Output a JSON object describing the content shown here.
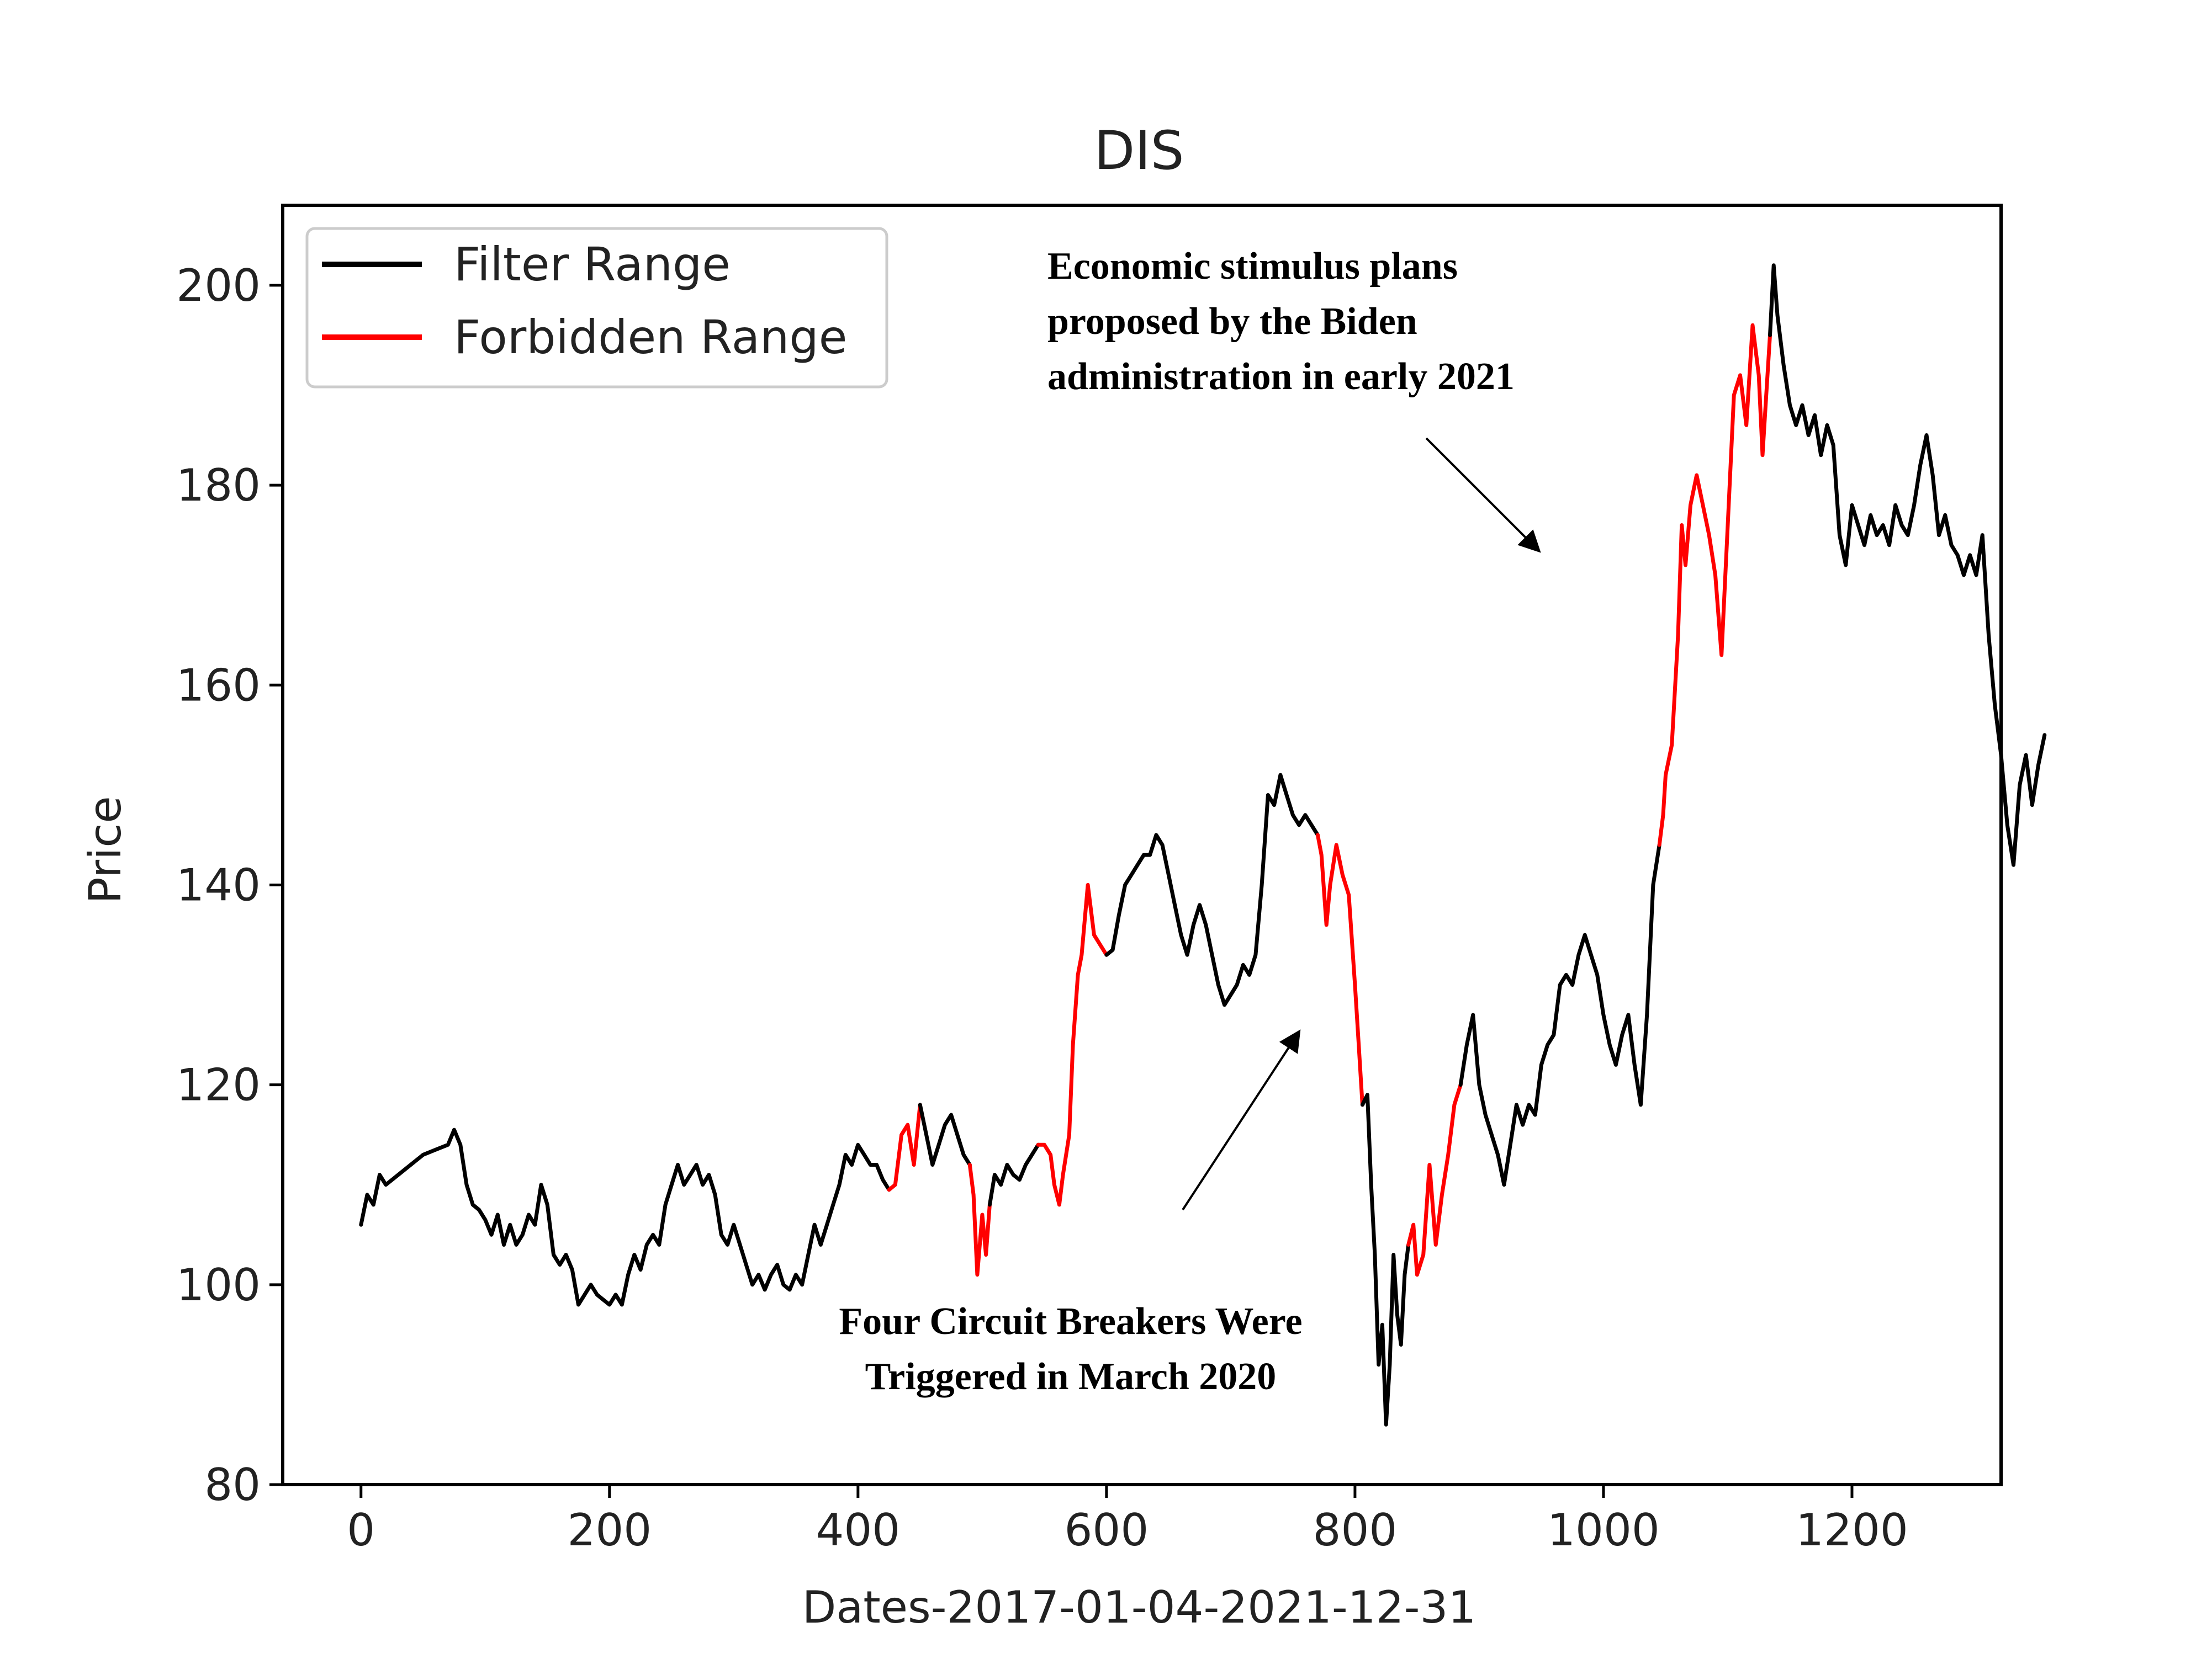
{
  "chart_data": {
    "type": "line",
    "title": "DIS",
    "xlabel": "Dates-2017-01-04-2021-12-31",
    "ylabel": "Price",
    "xlim": [
      -63,
      1320
    ],
    "ylim": [
      80,
      208
    ],
    "x_ticks": [
      0,
      200,
      400,
      600,
      800,
      1000,
      1200
    ],
    "y_ticks": [
      80,
      100,
      120,
      140,
      160,
      180,
      200
    ],
    "grid": false,
    "legend_position": "top-left",
    "series": [
      {
        "name": "Filter Range",
        "color": "#000000",
        "points": [
          [
            0,
            106
          ],
          [
            5,
            109
          ],
          [
            10,
            108
          ],
          [
            15,
            111
          ],
          [
            20,
            110
          ],
          [
            30,
            111
          ],
          [
            40,
            112
          ],
          [
            50,
            113
          ],
          [
            60,
            113.5
          ],
          [
            70,
            114
          ],
          [
            75,
            115.5
          ],
          [
            80,
            114
          ],
          [
            85,
            110
          ],
          [
            90,
            108
          ],
          [
            95,
            107.5
          ],
          [
            100,
            106.5
          ],
          [
            105,
            105
          ],
          [
            110,
            107
          ],
          [
            115,
            104
          ],
          [
            120,
            106
          ],
          [
            125,
            104
          ],
          [
            130,
            105
          ],
          [
            135,
            107
          ],
          [
            140,
            106
          ],
          [
            145,
            110
          ],
          [
            150,
            108
          ],
          [
            155,
            103
          ],
          [
            160,
            102
          ],
          [
            165,
            103
          ],
          [
            170,
            101.5
          ],
          [
            175,
            98
          ],
          [
            180,
            99
          ],
          [
            185,
            100
          ],
          [
            190,
            99
          ],
          [
            195,
            98.5
          ],
          [
            200,
            98
          ],
          [
            205,
            99
          ],
          [
            210,
            98
          ],
          [
            215,
            101
          ],
          [
            220,
            103
          ],
          [
            225,
            101.5
          ],
          [
            230,
            104
          ],
          [
            235,
            105
          ],
          [
            240,
            104
          ],
          [
            245,
            108
          ],
          [
            250,
            110
          ],
          [
            255,
            112
          ],
          [
            260,
            110
          ],
          [
            265,
            111
          ],
          [
            270,
            112
          ],
          [
            275,
            110
          ],
          [
            280,
            111
          ],
          [
            285,
            109
          ],
          [
            290,
            105
          ],
          [
            295,
            104
          ],
          [
            300,
            106
          ],
          [
            305,
            104
          ],
          [
            310,
            102
          ],
          [
            315,
            100
          ],
          [
            320,
            101
          ],
          [
            325,
            99.5
          ],
          [
            330,
            101
          ],
          [
            335,
            102
          ],
          [
            340,
            100
          ],
          [
            345,
            99.5
          ],
          [
            350,
            101
          ],
          [
            355,
            100
          ],
          [
            360,
            103
          ],
          [
            365,
            106
          ],
          [
            370,
            104
          ],
          [
            375,
            106
          ],
          [
            380,
            108
          ],
          [
            385,
            110
          ],
          [
            390,
            113
          ],
          [
            395,
            112
          ],
          [
            400,
            114
          ],
          [
            405,
            113
          ],
          [
            410,
            112
          ],
          [
            415,
            112
          ],
          [
            420,
            110.5
          ],
          [
            425,
            109.5
          ]
        ]
      },
      {
        "name": "Forbidden Range",
        "color": "#ff0000",
        "points": [
          [
            425,
            109.5
          ],
          [
            430,
            110
          ],
          [
            435,
            115
          ],
          [
            440,
            116
          ],
          [
            445,
            112
          ],
          [
            450,
            118
          ]
        ]
      },
      {
        "name": "Filter Range",
        "color": "#000000",
        "points": [
          [
            450,
            118
          ],
          [
            455,
            115
          ],
          [
            460,
            112
          ],
          [
            465,
            114
          ],
          [
            470,
            116
          ],
          [
            475,
            117
          ],
          [
            480,
            115
          ],
          [
            485,
            113
          ],
          [
            490,
            112
          ]
        ]
      },
      {
        "name": "Forbidden Range",
        "color": "#ff0000",
        "points": [
          [
            490,
            112
          ],
          [
            493,
            109
          ],
          [
            496,
            101
          ],
          [
            500,
            107
          ],
          [
            503,
            103
          ],
          [
            506,
            108
          ]
        ]
      },
      {
        "name": "Filter Range",
        "color": "#000000",
        "points": [
          [
            506,
            108
          ],
          [
            510,
            111
          ],
          [
            515,
            110
          ],
          [
            520,
            112
          ],
          [
            525,
            111
          ],
          [
            530,
            110.5
          ],
          [
            535,
            112
          ],
          [
            540,
            113
          ],
          [
            545,
            114
          ]
        ]
      },
      {
        "name": "Forbidden Range",
        "color": "#ff0000",
        "points": [
          [
            545,
            114
          ],
          [
            550,
            114
          ],
          [
            555,
            113
          ],
          [
            558,
            110
          ],
          [
            562,
            108
          ],
          [
            565,
            111
          ],
          [
            570,
            115
          ],
          [
            573,
            124
          ],
          [
            577,
            131
          ],
          [
            580,
            133
          ],
          [
            585,
            140
          ],
          [
            590,
            135
          ],
          [
            595,
            134
          ],
          [
            600,
            133
          ]
        ]
      },
      {
        "name": "Filter Range",
        "color": "#000000",
        "points": [
          [
            600,
            133
          ],
          [
            605,
            133.5
          ],
          [
            610,
            137
          ],
          [
            615,
            140
          ],
          [
            620,
            141
          ],
          [
            625,
            142
          ],
          [
            630,
            143
          ],
          [
            635,
            143
          ],
          [
            640,
            145
          ],
          [
            645,
            144
          ],
          [
            650,
            141
          ],
          [
            655,
            138
          ],
          [
            660,
            135
          ],
          [
            665,
            133
          ],
          [
            670,
            136
          ],
          [
            675,
            138
          ],
          [
            680,
            136
          ],
          [
            685,
            133
          ],
          [
            690,
            130
          ],
          [
            695,
            128
          ],
          [
            700,
            129
          ],
          [
            705,
            130
          ],
          [
            710,
            132
          ],
          [
            715,
            131
          ],
          [
            720,
            133
          ],
          [
            725,
            140
          ],
          [
            730,
            149
          ],
          [
            735,
            148
          ],
          [
            740,
            151
          ],
          [
            745,
            149
          ],
          [
            750,
            147
          ],
          [
            755,
            146
          ],
          [
            760,
            147
          ],
          [
            765,
            146
          ],
          [
            770,
            145
          ]
        ]
      },
      {
        "name": "Forbidden Range",
        "color": "#ff0000",
        "points": [
          [
            770,
            145
          ],
          [
            773,
            143
          ],
          [
            777,
            136
          ],
          [
            780,
            140
          ],
          [
            785,
            144
          ],
          [
            790,
            141
          ],
          [
            795,
            139
          ],
          [
            800,
            130
          ],
          [
            803,
            124
          ],
          [
            806,
            118
          ]
        ]
      },
      {
        "name": "Filter Range",
        "color": "#000000",
        "points": [
          [
            806,
            118
          ],
          [
            810,
            119
          ],
          [
            813,
            110
          ],
          [
            816,
            103
          ],
          [
            819,
            92
          ],
          [
            822,
            96
          ],
          [
            825,
            86
          ],
          [
            828,
            92
          ],
          [
            831,
            103
          ],
          [
            834,
            97
          ],
          [
            837,
            94
          ],
          [
            840,
            101
          ],
          [
            843,
            104
          ]
        ]
      },
      {
        "name": "Forbidden Range",
        "color": "#ff0000",
        "points": [
          [
            843,
            104
          ],
          [
            847,
            106
          ],
          [
            850,
            101
          ],
          [
            855,
            103
          ],
          [
            860,
            112
          ],
          [
            865,
            104
          ],
          [
            870,
            109
          ],
          [
            875,
            113
          ],
          [
            880,
            118
          ],
          [
            885,
            120
          ]
        ]
      },
      {
        "name": "Filter Range",
        "color": "#000000",
        "points": [
          [
            885,
            120
          ],
          [
            890,
            124
          ],
          [
            895,
            127
          ],
          [
            900,
            120
          ],
          [
            905,
            117
          ],
          [
            910,
            115
          ],
          [
            915,
            113
          ],
          [
            920,
            110
          ],
          [
            925,
            114
          ],
          [
            930,
            118
          ],
          [
            935,
            116
          ],
          [
            940,
            118
          ],
          [
            945,
            117
          ],
          [
            950,
            122
          ],
          [
            955,
            124
          ],
          [
            960,
            125
          ],
          [
            965,
            130
          ],
          [
            970,
            131
          ],
          [
            975,
            130
          ],
          [
            980,
            133
          ],
          [
            985,
            135
          ],
          [
            990,
            133
          ],
          [
            995,
            131
          ],
          [
            1000,
            127
          ],
          [
            1005,
            124
          ],
          [
            1010,
            122
          ],
          [
            1015,
            125
          ],
          [
            1020,
            127
          ],
          [
            1025,
            122
          ],
          [
            1030,
            118
          ],
          [
            1035,
            127
          ],
          [
            1040,
            140
          ],
          [
            1045,
            144
          ]
        ]
      },
      {
        "name": "Forbidden Range",
        "color": "#ff0000",
        "points": [
          [
            1045,
            144
          ],
          [
            1048,
            147
          ],
          [
            1050,
            151
          ],
          [
            1055,
            154
          ],
          [
            1060,
            165
          ],
          [
            1063,
            176
          ],
          [
            1066,
            172
          ],
          [
            1070,
            178
          ],
          [
            1075,
            181
          ],
          [
            1080,
            178
          ],
          [
            1085,
            175
          ],
          [
            1090,
            171
          ],
          [
            1095,
            163
          ],
          [
            1100,
            176
          ],
          [
            1105,
            189
          ],
          [
            1110,
            191
          ],
          [
            1115,
            186
          ],
          [
            1120,
            196
          ],
          [
            1125,
            191
          ],
          [
            1128,
            183
          ],
          [
            1131,
            189
          ],
          [
            1134,
            195
          ]
        ]
      },
      {
        "name": "Filter Range",
        "color": "#000000",
        "points": [
          [
            1134,
            195
          ],
          [
            1137,
            202
          ],
          [
            1140,
            197
          ],
          [
            1145,
            192
          ],
          [
            1150,
            188
          ],
          [
            1155,
            186
          ],
          [
            1160,
            188
          ],
          [
            1165,
            185
          ],
          [
            1170,
            187
          ],
          [
            1175,
            183
          ],
          [
            1180,
            186
          ],
          [
            1185,
            184
          ],
          [
            1190,
            175
          ],
          [
            1195,
            172
          ],
          [
            1200,
            178
          ],
          [
            1205,
            176
          ],
          [
            1210,
            174
          ],
          [
            1215,
            177
          ],
          [
            1220,
            175
          ],
          [
            1225,
            176
          ],
          [
            1230,
            174
          ],
          [
            1235,
            178
          ],
          [
            1240,
            176
          ],
          [
            1245,
            175
          ],
          [
            1250,
            178
          ],
          [
            1255,
            182
          ],
          [
            1260,
            185
          ],
          [
            1265,
            181
          ],
          [
            1270,
            175
          ],
          [
            1275,
            177
          ],
          [
            1280,
            174
          ],
          [
            1285,
            173
          ],
          [
            1290,
            171
          ],
          [
            1295,
            173
          ],
          [
            1300,
            171
          ],
          [
            1305,
            175
          ],
          [
            1310,
            165
          ],
          [
            1315,
            158
          ],
          [
            1320,
            153
          ],
          [
            1325,
            146
          ],
          [
            1330,
            142
          ],
          [
            1335,
            150
          ],
          [
            1340,
            153
          ],
          [
            1345,
            148
          ],
          [
            1350,
            152
          ],
          [
            1355,
            155
          ]
        ]
      }
    ],
    "legend": [
      {
        "label": "Filter Range",
        "color": "#000000"
      },
      {
        "label": "Forbidden Range",
        "color": "#ff0000"
      }
    ],
    "annotations": [
      {
        "lines": [
          "Economic stimulus plans",
          "proposed by the Biden",
          "administration in early 2021"
        ]
      },
      {
        "lines": [
          "Four Circuit Breakers Were",
          "Triggered in March 2020"
        ]
      }
    ]
  }
}
